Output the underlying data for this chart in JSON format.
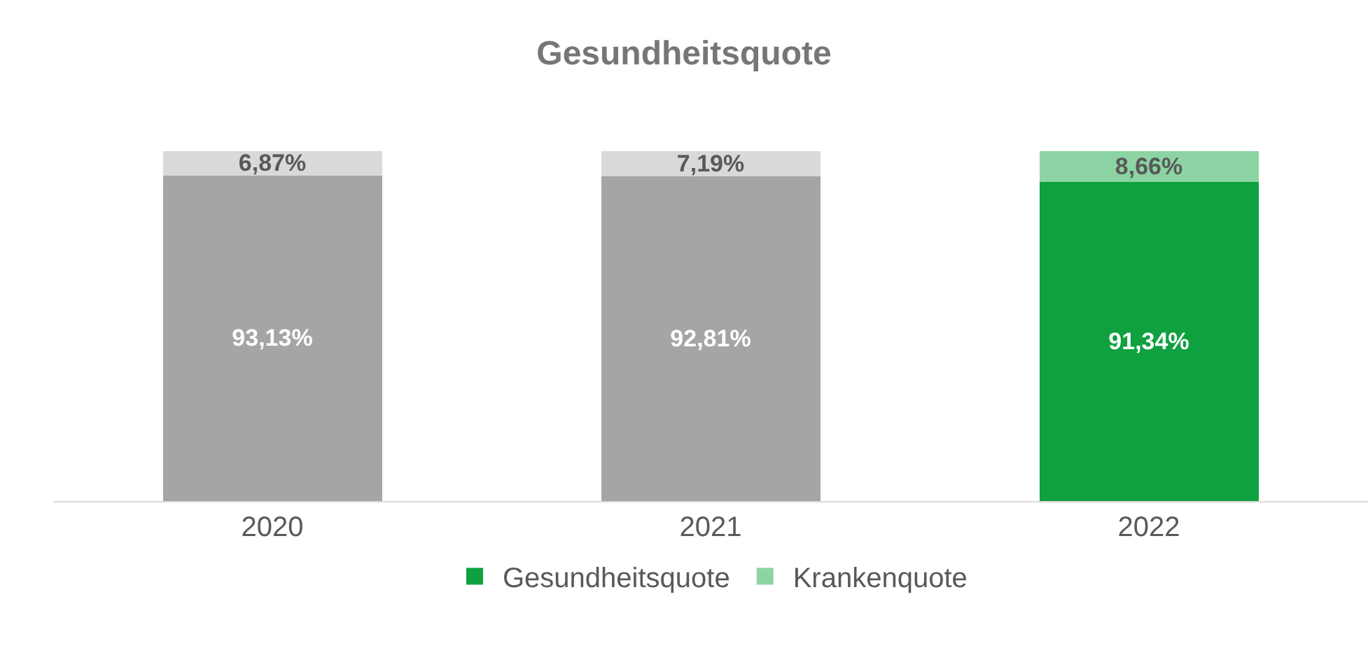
{
  "chart_data": {
    "type": "bar",
    "title": "Gesundheitsquote",
    "categories": [
      "2020",
      "2021",
      "2022"
    ],
    "stacked": true,
    "series": [
      {
        "name": "Gesundheitsquote",
        "color": "#0fa040",
        "colors": [
          "#a5a5a5",
          "#a5a5a5",
          "#0fa040"
        ],
        "values": [
          93.13,
          92.81,
          91.34
        ],
        "value_labels": [
          "93,13%",
          "92,81%",
          "91,34%"
        ]
      },
      {
        "name": "Krankenquote",
        "color": "#8cd4a4",
        "colors": [
          "#d9d9d9",
          "#d9d9d9",
          "#8cd4a4"
        ],
        "values": [
          6.87,
          7.19,
          8.66
        ],
        "value_labels": [
          "6,87%",
          "7,19%",
          "8,66%"
        ]
      }
    ],
    "legend": "bottom",
    "tick_labels": "x"
  }
}
